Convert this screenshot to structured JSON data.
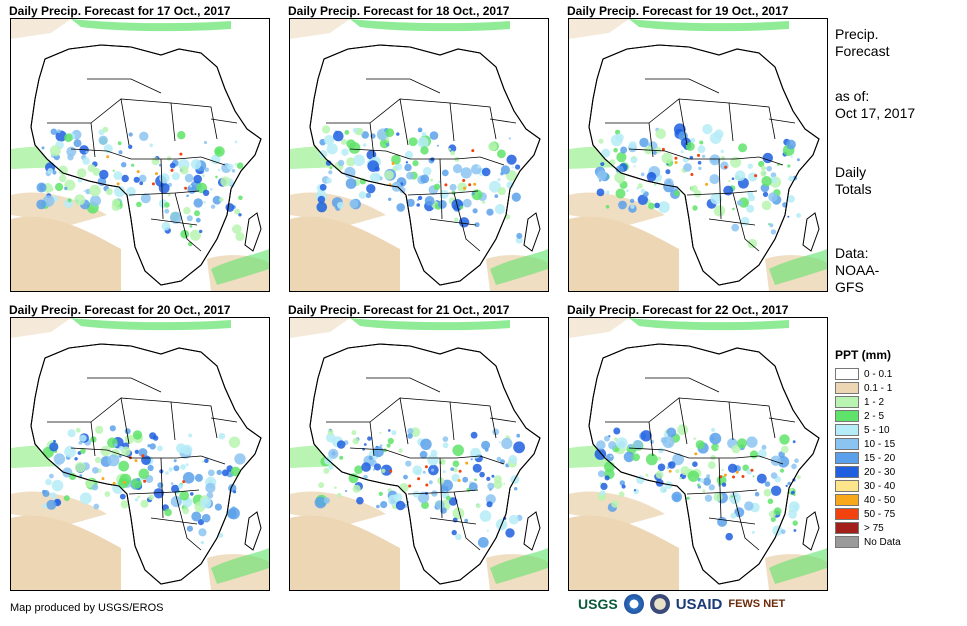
{
  "panels": [
    {
      "title": "Daily Precip. Forecast for 17 Oct., 2017"
    },
    {
      "title": "Daily Precip. Forecast for 18 Oct., 2017"
    },
    {
      "title": "Daily Precip. Forecast for 19 Oct., 2017"
    },
    {
      "title": "Daily Precip. Forecast for 20 Oct., 2017"
    },
    {
      "title": "Daily Precip. Forecast for 21 Oct., 2017"
    },
    {
      "title": "Daily Precip. Forecast for 22 Oct., 2017"
    }
  ],
  "sidebar": {
    "title_line1": "Precip.",
    "title_line2": "Forecast",
    "asof_line1": "as of:",
    "asof_line2": "Oct 17, 2017",
    "totals_line1": "Daily",
    "totals_line2": "Totals",
    "data_line1": "Data:",
    "data_line2": "NOAA-",
    "data_line3": "GFS"
  },
  "legend": {
    "title": "PPT (mm)",
    "items": [
      {
        "label": "0 - 0.1",
        "color": "#ffffff"
      },
      {
        "label": "0.1 - 1",
        "color": "#ecd6b4"
      },
      {
        "label": "1 - 2",
        "color": "#b9f4b2"
      },
      {
        "label": "2 - 5",
        "color": "#5fe36a"
      },
      {
        "label": "5 - 10",
        "color": "#b6ecf7"
      },
      {
        "label": "10 - 15",
        "color": "#8cc4f1"
      },
      {
        "label": "15 - 20",
        "color": "#5aa0ea"
      },
      {
        "label": "20 - 30",
        "color": "#1f5fe0"
      },
      {
        "label": "30 - 40",
        "color": "#fde58c"
      },
      {
        "label": "40 - 50",
        "color": "#f7a81b"
      },
      {
        "label": "50 - 75",
        "color": "#f2420d"
      },
      {
        "label": "> 75",
        "color": "#a31f1a"
      },
      {
        "label": "No Data",
        "color": "#9a9a9a"
      }
    ]
  },
  "credit": "Map produced by USGS/EROS",
  "logos": {
    "usgs": "USGS",
    "usaid": "USAID",
    "fews": "FEWS NET"
  }
}
